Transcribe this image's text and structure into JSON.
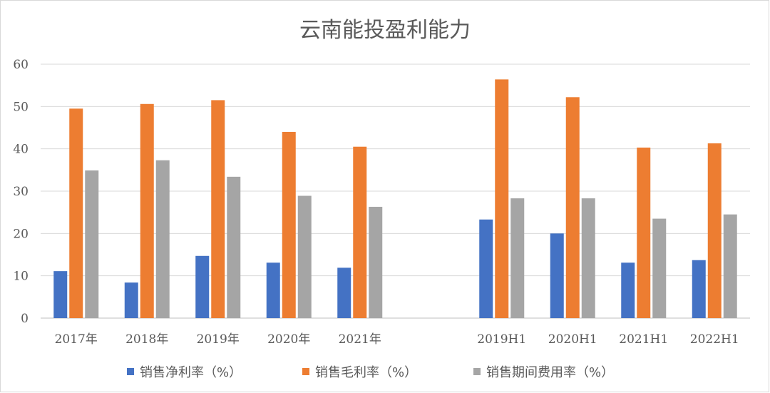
{
  "chart_data": {
    "type": "bar",
    "title": "云南能投盈利能力",
    "categories": [
      "2017年",
      "2018年",
      "2019年",
      "2020年",
      "2021年",
      "",
      "2019H1",
      "2020H1",
      "2021H1",
      "2022H1"
    ],
    "series": [
      {
        "name": "销售净利率（%）",
        "color": "#4472c4",
        "values": [
          11.1,
          8.4,
          14.7,
          13.1,
          11.9,
          null,
          23.3,
          20.0,
          13.1,
          13.7
        ]
      },
      {
        "name": "销售毛利率（%）",
        "color": "#ed7d31",
        "values": [
          49.5,
          50.6,
          51.5,
          44.0,
          40.5,
          null,
          56.4,
          52.2,
          40.3,
          41.3
        ]
      },
      {
        "name": "销售期间费用率（%）",
        "color": "#a5a5a5",
        "values": [
          34.9,
          37.3,
          33.4,
          28.9,
          26.3,
          null,
          28.3,
          28.3,
          23.5,
          24.5
        ]
      }
    ],
    "ylim": [
      0,
      60
    ],
    "yticks": [
      "0",
      "10",
      "20",
      "30",
      "40",
      "50",
      "60"
    ],
    "xlabel": "",
    "ylabel": "",
    "grid": true,
    "legend": "bottom"
  }
}
